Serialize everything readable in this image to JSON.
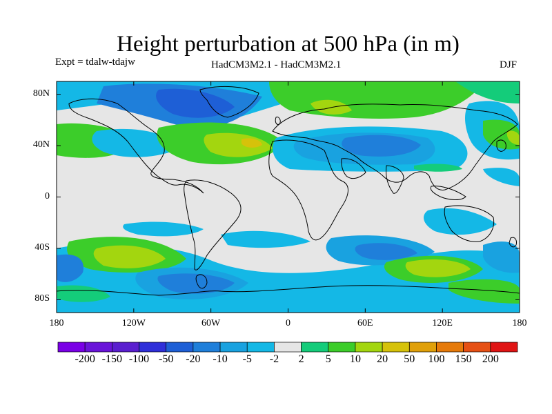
{
  "title": "Height perturbation at 500 hPa (in m)",
  "expt_label": "Expt = tdalw-tdajw",
  "model_label": "HadCM3M2.1 - HadCM3M2.1",
  "season_label": "DJF",
  "lat_ticks": [
    {
      "value": 80,
      "label": "80N"
    },
    {
      "value": 40,
      "label": "40N"
    },
    {
      "value": 0,
      "label": "0"
    },
    {
      "value": -40,
      "label": "40S"
    },
    {
      "value": -80,
      "label": "80S"
    }
  ],
  "lon_ticks": [
    {
      "value": -180,
      "label": "180"
    },
    {
      "value": -120,
      "label": "120W"
    },
    {
      "value": -60,
      "label": "60W"
    },
    {
      "value": 0,
      "label": "0"
    },
    {
      "value": 60,
      "label": "60E"
    },
    {
      "value": 120,
      "label": "120E"
    },
    {
      "value": 180,
      "label": "180"
    }
  ],
  "colorbar": {
    "colors": [
      "#7a00e6",
      "#6a14d9",
      "#5a1fcf",
      "#2f2fd9",
      "#1e5fd6",
      "#1f7fda",
      "#19a2e0",
      "#14b8e6",
      "#e6e6e6",
      "#14cc7a",
      "#3ccd2a",
      "#a3d60f",
      "#d6c20a",
      "#e0a00a",
      "#e67a0a",
      "#e65014",
      "#e01414"
    ],
    "labels": [
      "-200",
      "-150",
      "-100",
      "-50",
      "-20",
      "-10",
      "-5",
      "-2",
      "2",
      "5",
      "10",
      "20",
      "50",
      "100",
      "150",
      "200"
    ]
  },
  "field_colors": {
    "background": "#e6e6e6",
    "light_blue": "#14b8e6",
    "medium_blue": "#19a2e0",
    "dark_blue": "#1f7fda",
    "deep_blue": "#1e5fd6",
    "green": "#14cc7a",
    "light_green": "#3ccd2a",
    "yellow_green": "#a3d60f",
    "yellow": "#d6c20a",
    "land_outline": "#000000"
  }
}
